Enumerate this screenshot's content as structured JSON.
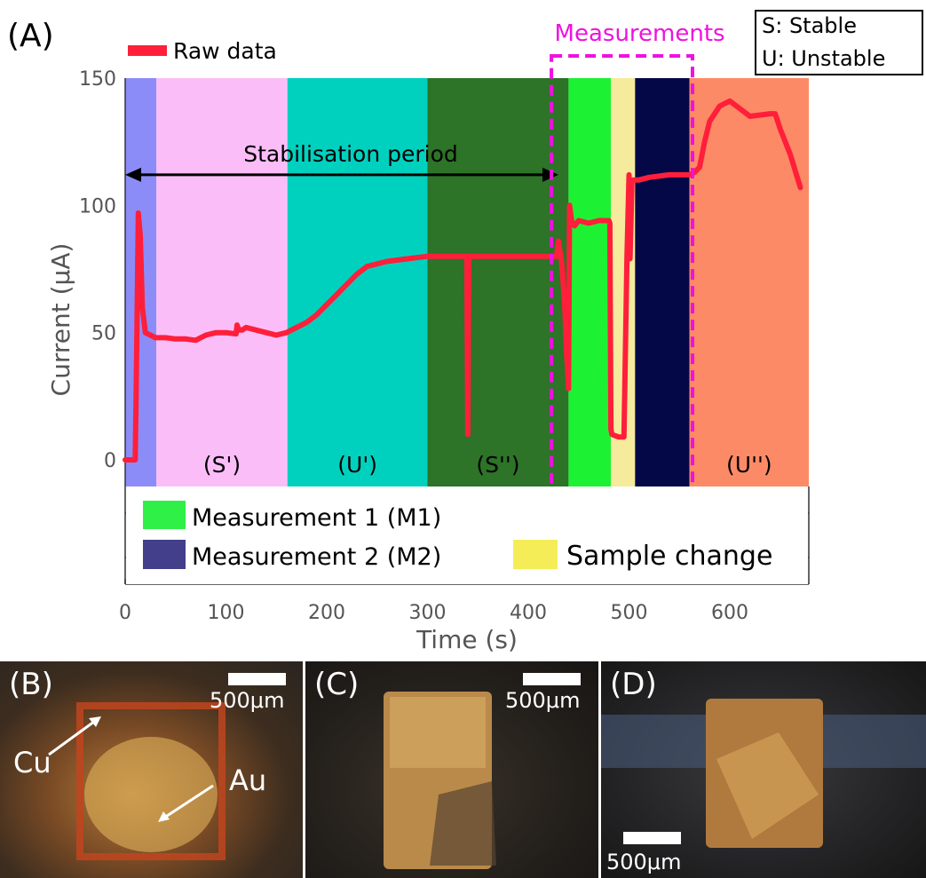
{
  "panel_label": "(A)",
  "chart_data": {
    "type": "line",
    "xlabel": "Time (s)",
    "ylabel": "Current (μA)",
    "xlim": [
      0,
      680
    ],
    "ylim": [
      -10,
      150
    ],
    "xticks": [
      0,
      100,
      200,
      300,
      400,
      500,
      600
    ],
    "yticks": [
      0,
      50,
      100,
      150
    ],
    "grid": false,
    "series": [
      {
        "name": "Raw data",
        "color": "#ff1f3a",
        "x": [
          0,
          10,
          11,
          13,
          15,
          17,
          20,
          25,
          30,
          40,
          50,
          60,
          70,
          80,
          90,
          100,
          110,
          111,
          113,
          116,
          120,
          130,
          140,
          150,
          160,
          170,
          180,
          190,
          200,
          210,
          220,
          230,
          240,
          260,
          280,
          300,
          320,
          339,
          340,
          341,
          342,
          360,
          380,
          400,
          420,
          428,
          430,
          433,
          436,
          438,
          440,
          441,
          443,
          446,
          450,
          460,
          470,
          480,
          481,
          482,
          483,
          486,
          490,
          495,
          498,
          500,
          501,
          503,
          510,
          520,
          540,
          560,
          565,
          570,
          575,
          580,
          590,
          600,
          610,
          620,
          640,
          645,
          650,
          660,
          670
        ],
        "y": [
          0,
          0,
          30,
          97,
          88,
          60,
          50,
          49,
          48,
          48,
          47.5,
          47.5,
          47,
          49,
          50,
          50,
          49.5,
          53,
          51,
          51,
          52,
          51,
          50,
          49,
          50,
          52,
          54,
          57,
          61,
          65,
          69,
          73,
          76,
          78,
          79,
          80,
          80,
          80,
          10,
          80,
          80,
          80,
          80,
          80,
          80,
          80,
          86,
          78,
          62,
          42,
          28,
          100,
          94,
          92,
          94,
          93,
          94,
          94,
          93,
          12,
          10,
          9.5,
          9,
          9,
          80,
          112,
          79,
          110,
          110,
          111,
          112,
          112,
          113,
          115,
          125,
          133,
          139,
          141,
          138,
          135,
          136,
          136,
          130,
          120,
          107
        ]
      }
    ],
    "regions": [
      {
        "x0": 0,
        "x1": 31,
        "color": "#8c8cf8",
        "label": ""
      },
      {
        "x0": 31,
        "x1": 161,
        "color": "#fbbdf8",
        "label": "(S')"
      },
      {
        "x0": 161,
        "x1": 300,
        "color": "#00d1bf",
        "label": "(U')"
      },
      {
        "x0": 300,
        "x1": 440,
        "color": "#2d7328",
        "label": "(S'')"
      },
      {
        "x0": 440,
        "x1": 482,
        "color": "#1cf233",
        "label": ""
      },
      {
        "x0": 482,
        "x1": 506,
        "color": "#f6ea9c",
        "label": ""
      },
      {
        "x0": 506,
        "x1": 560,
        "color": "#050847",
        "label": ""
      },
      {
        "x0": 560,
        "x1": 680,
        "color": "#fd8a66",
        "label": "(U'')"
      }
    ],
    "annotations": {
      "stabilisation": {
        "text": "Stabilisation period",
        "x0": 0,
        "x1": 430,
        "y": 112
      },
      "measurements": {
        "text": "Measurements",
        "x0": 423,
        "x1": 563,
        "color": "#ee11e0"
      }
    },
    "legend_top": {
      "label": "Raw data",
      "color": "#ff1f3a",
      "placement": "top-left"
    },
    "legend_bottom": [
      {
        "label": "Measurement 1 (M1)",
        "color": "#2ef047"
      },
      {
        "label": "Measurement 2 (M2)",
        "color": "#433f8a"
      },
      {
        "label": "Sample change",
        "color": "#f4ed57"
      }
    ],
    "key_box": [
      "S: Stable",
      "U: Unstable"
    ]
  },
  "photos": [
    {
      "label": "(B)",
      "scale": "500μm",
      "annotations": [
        "Cu",
        "Au"
      ]
    },
    {
      "label": "(C)",
      "scale": "500μm"
    },
    {
      "label": "(D)",
      "scale": "500μm"
    }
  ]
}
